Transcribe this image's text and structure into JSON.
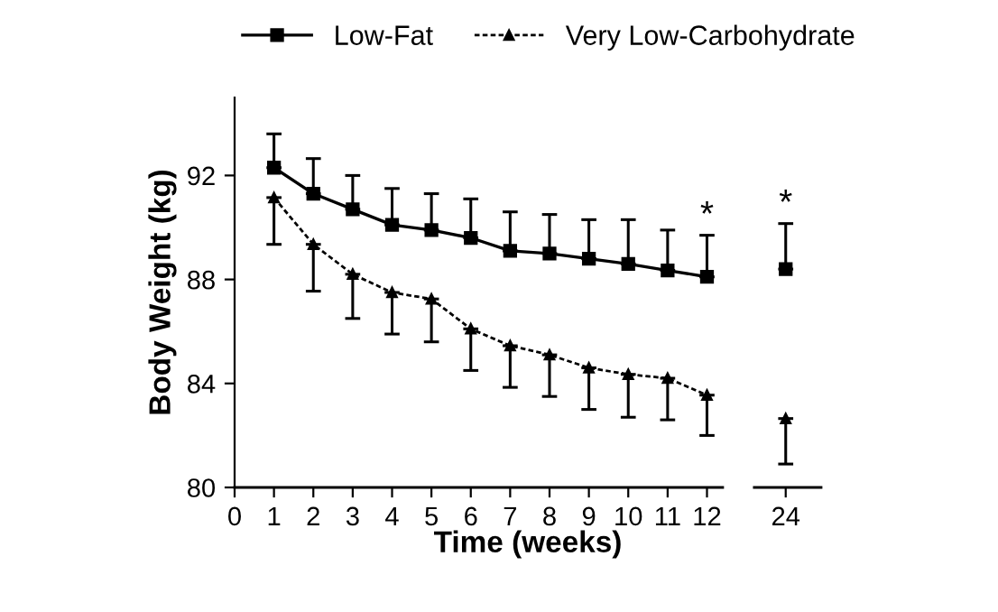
{
  "chart_data": {
    "type": "line",
    "xlabel": "Time (weeks)",
    "ylabel": "Body Weight (kg)",
    "legend": "top",
    "ylim": [
      80,
      95
    ],
    "yticks": [
      80,
      84,
      88,
      92
    ],
    "grid": false,
    "categories": [
      "0",
      "1",
      "2",
      "3",
      "4",
      "5",
      "6",
      "7",
      "8",
      "9",
      "10",
      "11",
      "12",
      null,
      "24"
    ],
    "series": [
      {
        "name": "Low-Fat",
        "color": "#000000",
        "marker": "square",
        "line_style": "solid",
        "values": [
          null,
          92.3,
          91.3,
          90.7,
          90.1,
          89.9,
          89.6,
          89.1,
          89.0,
          88.8,
          88.6,
          88.35,
          88.1,
          null,
          88.4
        ],
        "errors": [
          null,
          [
            92.3,
            93.6
          ],
          [
            91.3,
            92.65
          ],
          [
            90.7,
            92.0
          ],
          [
            90.1,
            91.5
          ],
          [
            89.9,
            91.3
          ],
          [
            89.6,
            91.1
          ],
          [
            89.1,
            90.6
          ],
          [
            89.0,
            90.5
          ],
          [
            88.8,
            90.3
          ],
          [
            88.6,
            90.3
          ],
          [
            88.35,
            89.9
          ],
          [
            88.1,
            89.7
          ],
          null,
          [
            88.4,
            90.15
          ]
        ]
      },
      {
        "name": "Very Low-Carbohydrate",
        "color": "#000000",
        "marker": "triangle",
        "line_style": "dashed",
        "values": [
          null,
          91.15,
          89.35,
          88.2,
          87.5,
          87.25,
          86.1,
          85.45,
          85.1,
          84.6,
          84.35,
          84.2,
          83.55,
          null,
          82.65
        ],
        "errors": [
          null,
          [
            89.35,
            91.15
          ],
          [
            87.55,
            89.35
          ],
          [
            86.5,
            88.2
          ],
          [
            85.9,
            87.5
          ],
          [
            85.6,
            87.25
          ],
          [
            84.5,
            86.1
          ],
          [
            83.85,
            85.45
          ],
          [
            83.5,
            85.1
          ],
          [
            83.0,
            84.6
          ],
          [
            82.7,
            84.35
          ],
          [
            82.6,
            84.2
          ],
          [
            82.0,
            83.55
          ],
          null,
          [
            80.9,
            82.65
          ]
        ]
      }
    ],
    "annotations": [
      {
        "text": "*",
        "x": "12",
        "y": 89.7
      },
      {
        "text": "*",
        "x": "24",
        "y": 90.15
      }
    ]
  }
}
